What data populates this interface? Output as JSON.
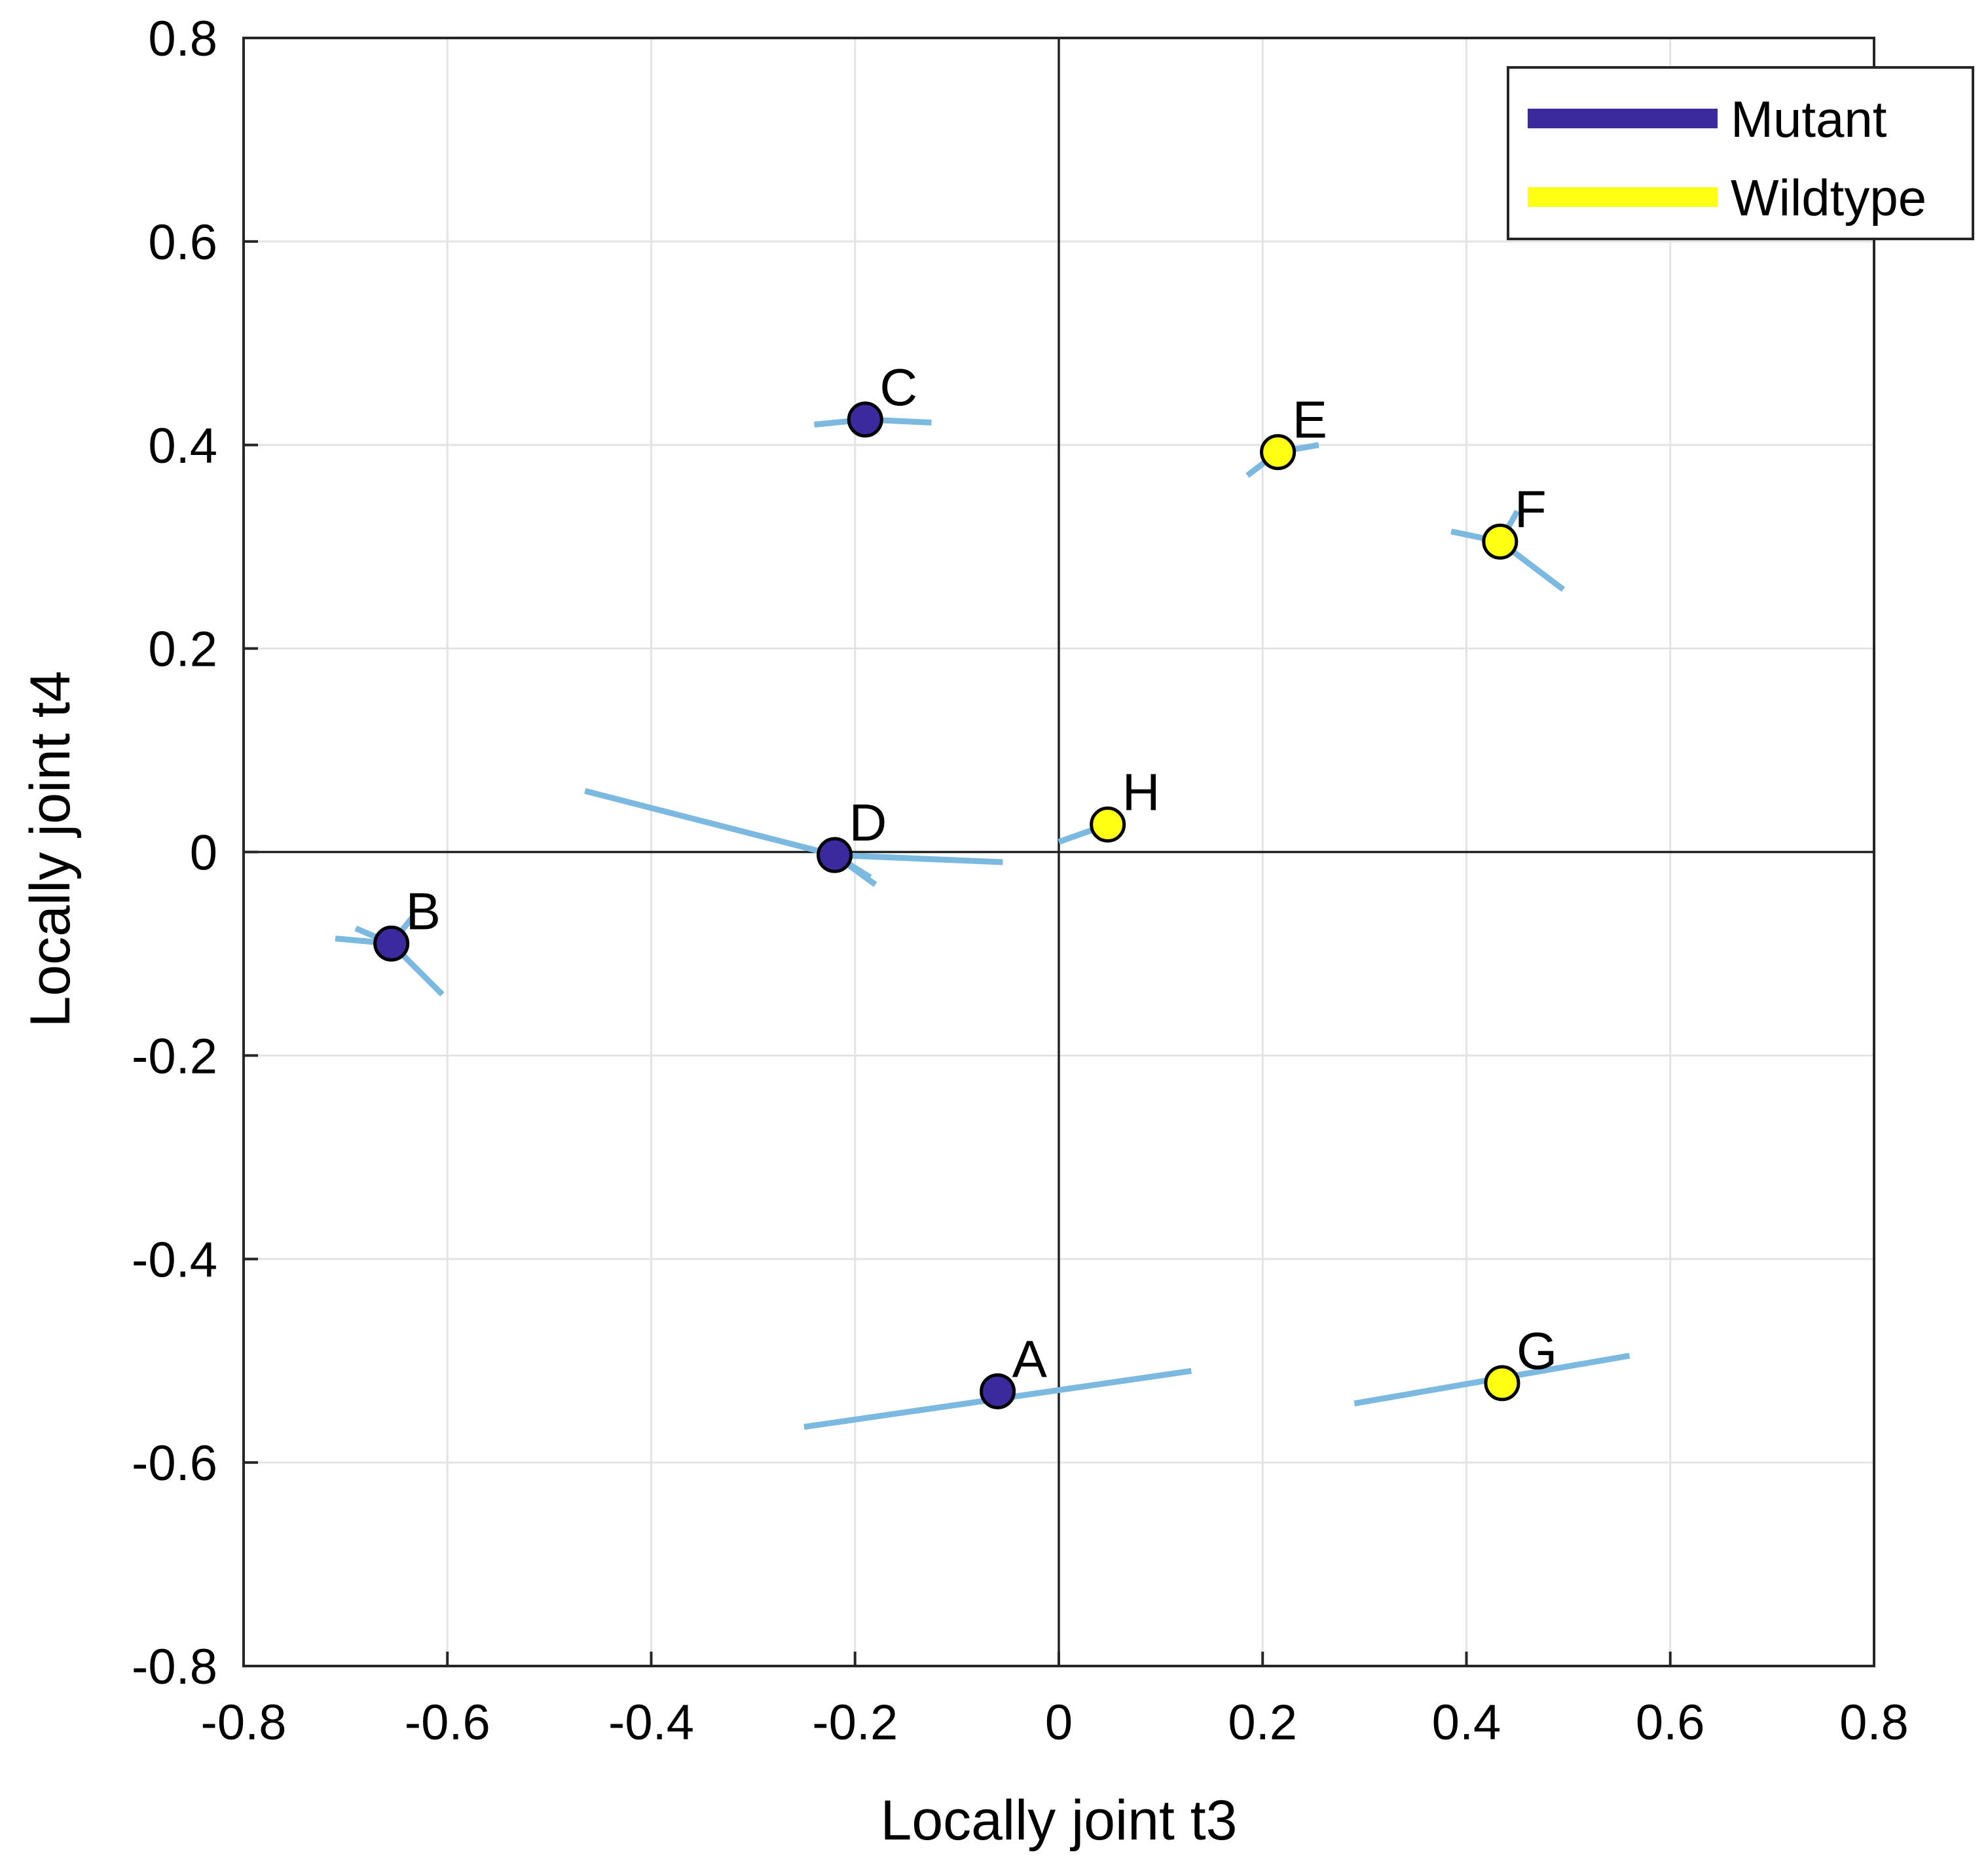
{
  "chart_data": {
    "type": "scatter",
    "title": "",
    "xlabel": "Locally joint t3",
    "ylabel": "Locally joint t4",
    "xlim": [
      -0.8,
      0.8
    ],
    "ylim": [
      -0.8,
      0.8
    ],
    "xticks": [
      -0.8,
      -0.6,
      -0.4,
      -0.2,
      0,
      0.2,
      0.4,
      0.6,
      0.8
    ],
    "yticks": [
      -0.8,
      -0.6,
      -0.4,
      -0.2,
      0,
      0.2,
      0.4,
      0.6,
      0.8
    ],
    "xtick_labels": [
      "-0.8",
      "-0.6",
      "-0.4",
      "-0.2",
      "0",
      "0.2",
      "0.4",
      "0.6",
      "0.8"
    ],
    "ytick_labels": [
      "-0.8",
      "-0.6",
      "-0.4",
      "-0.2",
      "0",
      "0.2",
      "0.4",
      "0.6",
      "0.8"
    ],
    "grid": true,
    "zero_lines": true,
    "legend": {
      "position": "top-right",
      "entries": [
        {
          "label": "Mutant",
          "color": "#3a2a9e"
        },
        {
          "label": "Wildtype",
          "color": "#ffff14"
        }
      ]
    },
    "segment_color": "#7cb9e0",
    "points": [
      {
        "label": "A",
        "group": "Mutant",
        "x": -0.06,
        "y": -0.53,
        "segments": [
          [
            -0.25,
            -0.565,
            0.13,
            -0.51
          ]
        ]
      },
      {
        "label": "B",
        "group": "Mutant",
        "x": -0.655,
        "y": -0.09,
        "segments": [
          [
            -0.71,
            -0.085,
            -0.655,
            -0.09
          ],
          [
            -0.69,
            -0.075,
            -0.655,
            -0.09
          ],
          [
            -0.655,
            -0.09,
            -0.605,
            -0.14
          ],
          [
            -0.655,
            -0.09,
            -0.635,
            -0.065
          ]
        ]
      },
      {
        "label": "C",
        "group": "Mutant",
        "x": -0.19,
        "y": 0.425,
        "segments": [
          [
            -0.24,
            0.42,
            -0.19,
            0.425
          ],
          [
            -0.19,
            0.425,
            -0.125,
            0.422
          ]
        ]
      },
      {
        "label": "D",
        "group": "Mutant",
        "x": -0.22,
        "y": -0.003,
        "segments": [
          [
            -0.465,
            0.06,
            -0.22,
            -0.003
          ],
          [
            -0.22,
            -0.003,
            -0.055,
            -0.01
          ],
          [
            -0.22,
            -0.003,
            -0.18,
            -0.032
          ],
          [
            -0.22,
            -0.003,
            -0.185,
            -0.025
          ]
        ]
      },
      {
        "label": "E",
        "group": "Wildtype",
        "x": 0.215,
        "y": 0.393,
        "segments": [
          [
            0.185,
            0.37,
            0.215,
            0.393
          ],
          [
            0.215,
            0.393,
            0.255,
            0.4
          ]
        ]
      },
      {
        "label": "F",
        "group": "Wildtype",
        "x": 0.433,
        "y": 0.305,
        "segments": [
          [
            0.385,
            0.315,
            0.433,
            0.305
          ],
          [
            0.433,
            0.305,
            0.495,
            0.258
          ],
          [
            0.433,
            0.305,
            0.45,
            0.335
          ]
        ]
      },
      {
        "label": "G",
        "group": "Wildtype",
        "x": 0.435,
        "y": -0.522,
        "segments": [
          [
            0.29,
            -0.542,
            0.56,
            -0.495
          ]
        ]
      },
      {
        "label": "H",
        "group": "Wildtype",
        "x": 0.048,
        "y": 0.027,
        "segments": [
          [
            0.0,
            0.01,
            0.048,
            0.027
          ]
        ]
      }
    ]
  }
}
